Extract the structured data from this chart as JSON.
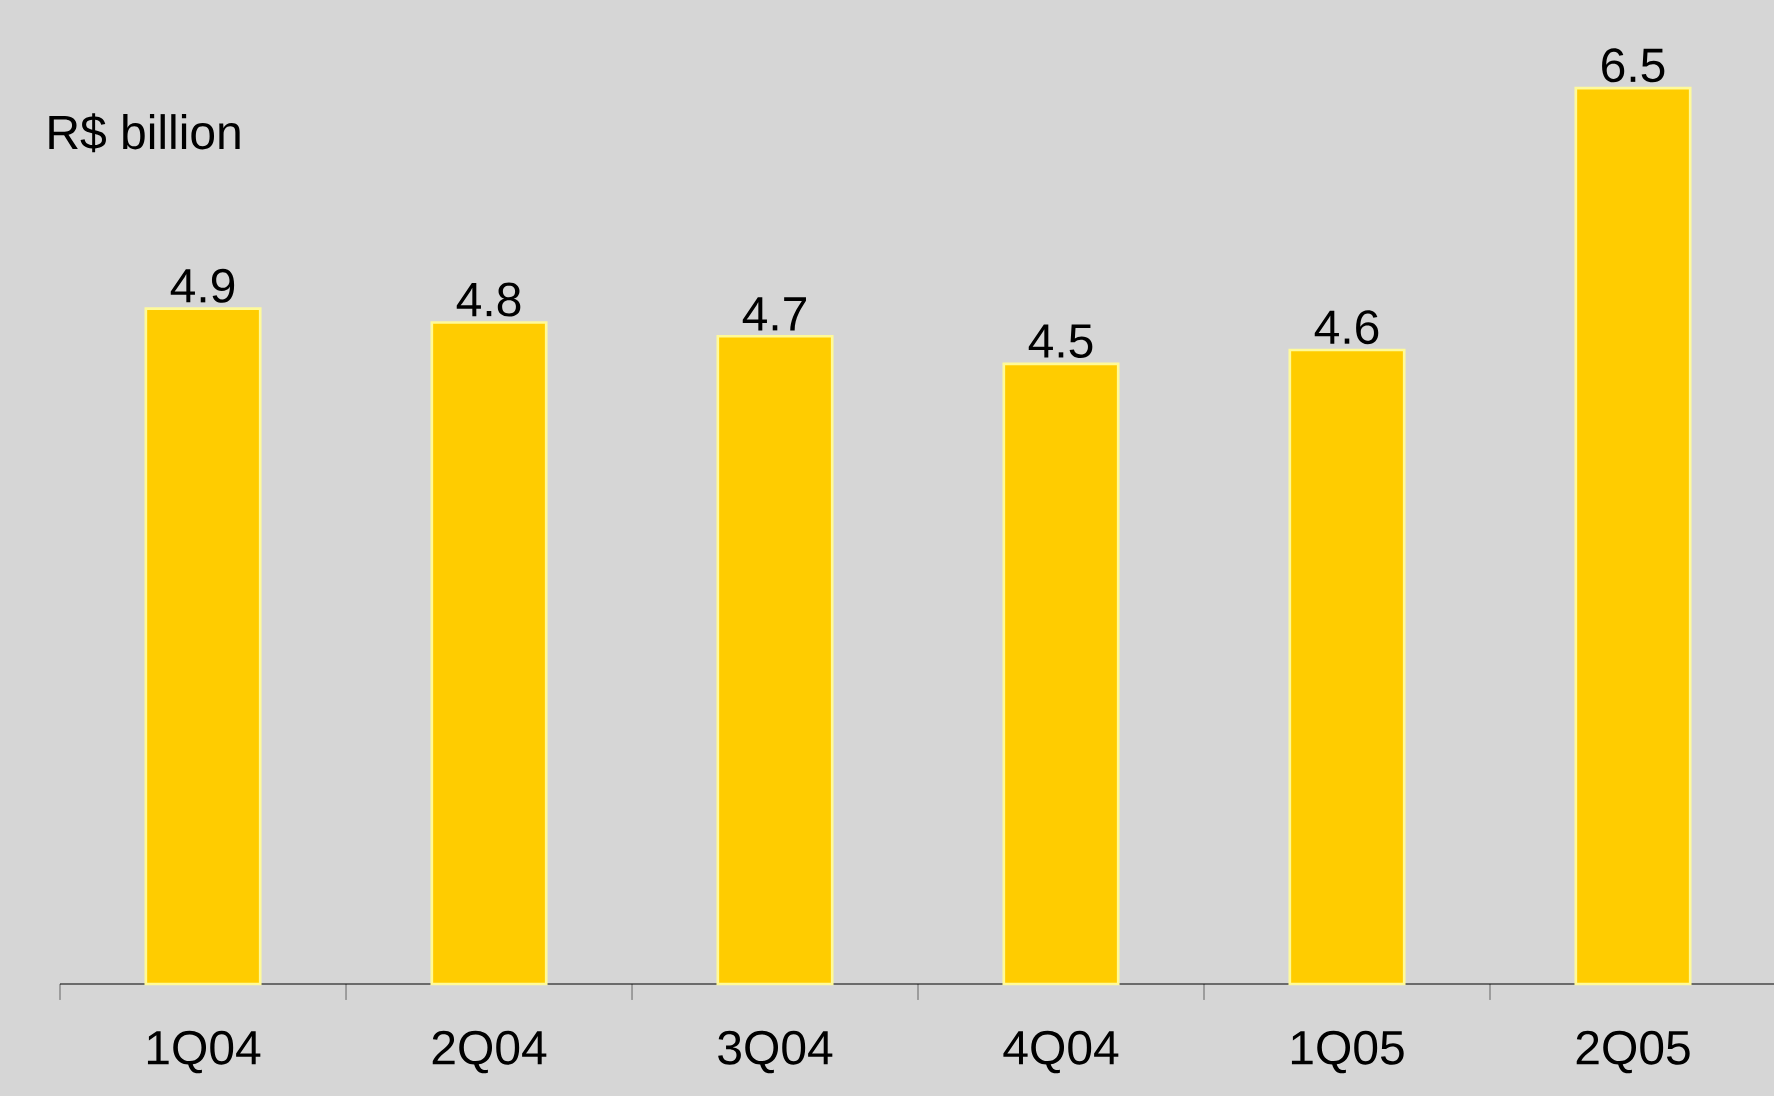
{
  "chart_data": {
    "type": "bar",
    "ylabel": "R$ billion",
    "categories": [
      "1Q04",
      "2Q04",
      "3Q04",
      "4Q04",
      "1Q05",
      "2Q05"
    ],
    "values": [
      4.9,
      4.8,
      4.7,
      4.5,
      4.6,
      6.5
    ],
    "color": "#ffcc00",
    "ylim": [
      0,
      7.14
    ],
    "data_labels": true
  }
}
